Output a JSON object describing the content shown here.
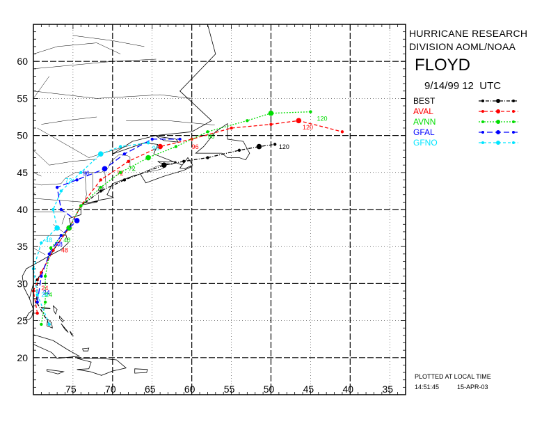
{
  "header": {
    "line1": "HURRICANE RESEARCH",
    "line2": "DIVISION AOML/NOAA",
    "storm_name": "FLOYD",
    "datetime": "9/14/99 12  UTC"
  },
  "legend": [
    {
      "label": "BEST",
      "color": "#000000",
      "dash": "5,2,1,2"
    },
    {
      "label": "AVAL",
      "color": "#ff0000",
      "dash": "5,3"
    },
    {
      "label": "AVNN",
      "color": "#00dd00",
      "dash": "2,2"
    },
    {
      "label": "GFAL",
      "color": "#0000ff",
      "dash": "8,4"
    },
    {
      "label": "GFNO",
      "color": "#00e5ff",
      "dash": "4,3"
    }
  ],
  "footer": {
    "plotted": "PLOTTED AT LOCAL TIME",
    "time": "14:51:45",
    "date": "15-APR-03"
  },
  "axes": {
    "lat_labels": [
      "20",
      "25",
      "30",
      "35",
      "40",
      "45",
      "50",
      "55",
      "60"
    ],
    "lon_labels": [
      "75",
      "70",
      "65",
      "60",
      "55",
      "50",
      "45",
      "40",
      "35"
    ],
    "lon_range": [
      -80,
      -33
    ],
    "lat_range": [
      15,
      65
    ]
  },
  "tracks": [
    {
      "name": "BEST",
      "points": [
        [
          -78,
          24.5
        ],
        [
          -79.6,
          27.5
        ],
        [
          -79.5,
          30.5
        ],
        [
          -77.5,
          34.5
        ],
        [
          -75.5,
          37.5
        ],
        [
          -74,
          40.5
        ],
        [
          -71.5,
          42.5
        ],
        [
          -68.5,
          44
        ],
        [
          -63.5,
          46
        ],
        [
          -61,
          46.5
        ],
        [
          -58,
          47
        ],
        [
          -54,
          48
        ],
        [
          -51.5,
          48.5
        ],
        [
          -49.5,
          48.8
        ]
      ],
      "labels": [
        {
          "text": "72",
          "at": [
            -72,
            42.5
          ]
        },
        {
          "text": "120",
          "at": [
            -49,
            48.2
          ]
        }
      ]
    },
    {
      "name": "AVAL",
      "points": [
        [
          -79.5,
          26
        ],
        [
          -80,
          29
        ],
        [
          -79,
          31.5
        ],
        [
          -77.5,
          34.5
        ],
        [
          -75.5,
          37.5
        ],
        [
          -74,
          40.5
        ],
        [
          -71.5,
          44
        ],
        [
          -68,
          46.5
        ],
        [
          -64,
          48.5
        ],
        [
          -60,
          49.5
        ],
        [
          -55,
          51
        ],
        [
          -50,
          51.5
        ],
        [
          -46.5,
          52
        ],
        [
          -41,
          50.5
        ]
      ],
      "labels": [
        {
          "text": "24",
          "at": [
            -79,
            29.1
          ]
        },
        {
          "text": "48",
          "at": [
            -76.5,
            34.2
          ]
        },
        {
          "text": "72",
          "at": [
            -69.5,
            44.6
          ]
        },
        {
          "text": "96",
          "at": [
            -60,
            48.2
          ]
        },
        {
          "text": "120",
          "at": [
            -46,
            50.8
          ]
        }
      ]
    },
    {
      "name": "AVNN",
      "points": [
        [
          -79,
          24.5
        ],
        [
          -78.5,
          27.5
        ],
        [
          -78.5,
          31
        ],
        [
          -77.8,
          34.8
        ],
        [
          -75.5,
          37.5
        ],
        [
          -74,
          40.5
        ],
        [
          -71.5,
          43
        ],
        [
          -69,
          45
        ],
        [
          -65.5,
          47
        ],
        [
          -62,
          48.5
        ],
        [
          -58,
          50.5
        ],
        [
          -53,
          52
        ],
        [
          -50,
          53
        ],
        [
          -45,
          53.2
        ]
      ],
      "labels": [
        {
          "text": "24",
          "at": [
            -78.5,
            28.2
          ]
        },
        {
          "text": "48",
          "at": [
            -76.2,
            35.6
          ]
        },
        {
          "text": "72",
          "at": [
            -68,
            45.2
          ]
        },
        {
          "text": "96",
          "at": [
            -58,
            49.6
          ]
        },
        {
          "text": "120",
          "at": [
            -44.2,
            52
          ]
        }
      ]
    },
    {
      "name": "GFAL",
      "points": [
        [
          -79.5,
          27.5
        ],
        [
          -79,
          31
        ],
        [
          -78,
          34
        ],
        [
          -76.5,
          36.5
        ],
        [
          -74.5,
          38.5
        ],
        [
          -76.5,
          40
        ],
        [
          -77,
          43
        ],
        [
          -74.5,
          44
        ],
        [
          -71,
          45.5
        ],
        [
          -68.5,
          47.5
        ],
        [
          -65,
          49.5
        ],
        [
          -61.5,
          49.5
        ]
      ],
      "labels": [
        {
          "text": "24",
          "at": [
            -78.8,
            28.5
          ]
        },
        {
          "text": "48",
          "at": [
            -77.2,
            35
          ]
        },
        {
          "text": "96",
          "at": [
            -73.8,
            44.6
          ]
        }
      ]
    },
    {
      "name": "GFNO",
      "points": [
        [
          -78,
          24.5
        ],
        [
          -79.5,
          28.5
        ],
        [
          -80,
          32
        ],
        [
          -79,
          35.5
        ],
        [
          -77,
          37.5
        ],
        [
          -77.5,
          40
        ],
        [
          -76.5,
          42.5
        ],
        [
          -74,
          45
        ],
        [
          -71.5,
          47.5
        ],
        [
          -69,
          48.5
        ],
        [
          -65.5,
          49
        ]
      ],
      "labels": [
        {
          "text": "24",
          "at": [
            -79,
            28.2
          ]
        },
        {
          "text": "48",
          "at": [
            -78.5,
            35.6
          ]
        },
        {
          "text": "72",
          "at": [
            -76,
            43.6
          ]
        },
        {
          "text": "96",
          "at": [
            -65,
            48
          ]
        }
      ]
    }
  ],
  "land": [
    {
      "name": "north-america",
      "points": [
        [
          -80,
          65
        ],
        [
          -58,
          65
        ],
        [
          -57,
          61
        ],
        [
          -61.5,
          56
        ],
        [
          -57.5,
          52
        ],
        [
          -60,
          50.5
        ],
        [
          -64.5,
          50
        ],
        [
          -67.5,
          49.2
        ],
        [
          -70,
          47.5
        ],
        [
          -66,
          49
        ],
        [
          -64.3,
          48.8
        ],
        [
          -64.8,
          47.5
        ],
        [
          -61.2,
          46
        ],
        [
          -60,
          45.8
        ],
        [
          -61,
          45.3
        ],
        [
          -63.5,
          44.5
        ],
        [
          -65.8,
          43.6
        ],
        [
          -66.5,
          44.8
        ],
        [
          -67.5,
          44.5
        ],
        [
          -70,
          43.5
        ],
        [
          -70.7,
          42
        ],
        [
          -69.9,
          41.6
        ],
        [
          -71.5,
          41.3
        ],
        [
          -73.8,
          40.7
        ],
        [
          -74,
          40.5
        ],
        [
          -74,
          39.3
        ],
        [
          -75.5,
          38.8
        ],
        [
          -75.3,
          38
        ],
        [
          -76,
          37
        ],
        [
          -75.6,
          35.5
        ],
        [
          -76.5,
          34.6
        ],
        [
          -77.9,
          33.8
        ],
        [
          -79.2,
          33
        ],
        [
          -80.9,
          32
        ],
        [
          -81.4,
          31
        ],
        [
          -81.2,
          29.5
        ],
        [
          -80.5,
          28
        ],
        [
          -80,
          26.5
        ],
        [
          -80.2,
          25.5
        ],
        [
          -80.6,
          25.1
        ],
        [
          -81,
          25.2
        ],
        [
          -80.6,
          26
        ],
        [
          -80,
          26.5
        ],
        [
          -80.5,
          28
        ],
        [
          -80,
          30
        ],
        [
          -80,
          65
        ]
      ]
    },
    {
      "name": "newfoundland",
      "points": [
        [
          -59.5,
          47.6
        ],
        [
          -58.5,
          48.5
        ],
        [
          -57,
          50.5
        ],
        [
          -55.5,
          51.6
        ],
        [
          -55.5,
          49.5
        ],
        [
          -53.5,
          49.2
        ],
        [
          -52.7,
          47.6
        ],
        [
          -53.2,
          46.7
        ],
        [
          -54,
          47
        ],
        [
          -55.5,
          47
        ],
        [
          -56.2,
          47.6
        ],
        [
          -59.5,
          47.6
        ]
      ]
    },
    {
      "name": "cape-breton",
      "points": [
        [
          -61.5,
          45.6
        ],
        [
          -60.5,
          47
        ],
        [
          -59.9,
          46
        ],
        [
          -60.9,
          45.5
        ],
        [
          -61.5,
          45.6
        ]
      ]
    },
    {
      "name": "pei",
      "points": [
        [
          -64.3,
          46.5
        ],
        [
          -63,
          46.4
        ],
        [
          -62,
          46.5
        ],
        [
          -62.5,
          46.1
        ],
        [
          -64,
          46.3
        ],
        [
          -64.3,
          46.5
        ]
      ]
    },
    {
      "name": "anticosti",
      "points": [
        [
          -64.5,
          49.9
        ],
        [
          -62,
          49.5
        ],
        [
          -61.7,
          49.1
        ],
        [
          -63.5,
          49.3
        ],
        [
          -64.5,
          49.9
        ]
      ]
    },
    {
      "name": "long-island",
      "points": [
        [
          -74,
          40.6
        ],
        [
          -72,
          41
        ],
        [
          -71.9,
          41.1
        ],
        [
          -73.5,
          40.9
        ],
        [
          -74,
          40.6
        ]
      ]
    },
    {
      "name": "grand-bahama",
      "points": [
        [
          -79,
          26.8
        ],
        [
          -78,
          26.7
        ],
        [
          -77.9,
          26.6
        ],
        [
          -78.9,
          26.6
        ],
        [
          -79,
          26.8
        ]
      ]
    },
    {
      "name": "abaco",
      "points": [
        [
          -77.5,
          27
        ],
        [
          -77,
          26.5
        ],
        [
          -77.2,
          25.9
        ],
        [
          -77.4,
          26.3
        ],
        [
          -77.5,
          27
        ]
      ]
    },
    {
      "name": "andros",
      "points": [
        [
          -78.2,
          25.2
        ],
        [
          -77.7,
          24.7
        ],
        [
          -77.6,
          24
        ],
        [
          -78.3,
          24.3
        ],
        [
          -78.2,
          25.2
        ]
      ]
    },
    {
      "name": "eleuthera",
      "points": [
        [
          -76.7,
          25.6
        ],
        [
          -76.2,
          25
        ],
        [
          -76.3,
          24.8
        ],
        [
          -76.7,
          25.3
        ],
        [
          -76.7,
          25.6
        ]
      ]
    },
    {
      "name": "exuma",
      "points": [
        [
          -76.5,
          24.6
        ],
        [
          -75.8,
          23.7
        ],
        [
          -75.6,
          23.4
        ],
        [
          -76,
          23.8
        ],
        [
          -76.5,
          24.6
        ]
      ]
    },
    {
      "name": "long-island-bs",
      "points": [
        [
          -75.4,
          23.6
        ],
        [
          -75,
          23
        ],
        [
          -75.2,
          23.1
        ],
        [
          -75.4,
          23.6
        ]
      ]
    },
    {
      "name": "inagua",
      "points": [
        [
          -73.8,
          21.2
        ],
        [
          -73,
          21.3
        ],
        [
          -73.1,
          20.9
        ],
        [
          -73.7,
          20.9
        ],
        [
          -73.8,
          21.2
        ]
      ]
    },
    {
      "name": "cuba",
      "points": [
        [
          -80,
          23.1
        ],
        [
          -77.5,
          22.3
        ],
        [
          -75.7,
          21.1
        ],
        [
          -74.2,
          20.2
        ],
        [
          -77,
          19.9
        ],
        [
          -77.7,
          20.7
        ],
        [
          -80,
          21.8
        ],
        [
          -80,
          23.1
        ]
      ]
    },
    {
      "name": "hispaniola",
      "points": [
        [
          -74.5,
          19.9
        ],
        [
          -72.8,
          19.9
        ],
        [
          -71.5,
          19.9
        ],
        [
          -69.5,
          19.7
        ],
        [
          -68.3,
          18.6
        ],
        [
          -70,
          18.2
        ],
        [
          -71.4,
          17.6
        ],
        [
          -72.8,
          18.1
        ],
        [
          -74.5,
          18.4
        ],
        [
          -73,
          18.5
        ],
        [
          -72.7,
          19.4
        ],
        [
          -74.5,
          19.9
        ]
      ]
    },
    {
      "name": "jamaica",
      "points": [
        [
          -78.3,
          18.4
        ],
        [
          -76.2,
          18.1
        ],
        [
          -76.9,
          17.8
        ],
        [
          -78.3,
          18.2
        ],
        [
          -78.3,
          18.4
        ]
      ]
    },
    {
      "name": "puerto-rico",
      "points": [
        [
          -67.2,
          18.5
        ],
        [
          -65.6,
          18.4
        ],
        [
          -65.7,
          18
        ],
        [
          -67.2,
          17.9
        ],
        [
          -67.2,
          18.5
        ]
      ]
    }
  ],
  "borders": [
    [
      [
        -80,
        43.5
      ],
      [
        -79,
        43.3
      ],
      [
        -76.5,
        43.5
      ],
      [
        -76,
        44.2
      ],
      [
        -74.7,
        45
      ],
      [
        -71.5,
        45
      ],
      [
        -70.7,
        45.4
      ],
      [
        -70.2,
        46.5
      ],
      [
        -69.2,
        47.4
      ],
      [
        -68.2,
        47.3
      ],
      [
        -67.8,
        47.1
      ],
      [
        -67.8,
        45.7
      ],
      [
        -67.1,
        45.2
      ]
    ],
    [
      [
        -66.5,
        44.8
      ],
      [
        -64.5,
        45.8
      ],
      [
        -64,
        46
      ],
      [
        -63.5,
        45.6
      ],
      [
        -64,
        45.4
      ],
      [
        -65.8,
        45
      ]
    ],
    [
      [
        -79.5,
        51
      ],
      [
        -73,
        47
      ],
      [
        -70,
        48
      ],
      [
        -68,
        48.6
      ]
    ],
    [
      [
        -68.3,
        52
      ],
      [
        -63,
        52
      ],
      [
        -57.1,
        51.4
      ]
    ],
    [
      [
        -80,
        56
      ],
      [
        -72,
        55
      ],
      [
        -64,
        55.5
      ],
      [
        -60,
        55
      ]
    ],
    [
      [
        -80,
        59
      ],
      [
        -70,
        60
      ],
      [
        -64.5,
        60.3
      ]
    ],
    [
      [
        -79,
        51.5
      ],
      [
        -76,
        52
      ],
      [
        -72,
        52.5
      ]
    ],
    [
      [
        -80,
        48
      ],
      [
        -78,
        46
      ],
      [
        -75,
        46.5
      ],
      [
        -72,
        46.8
      ]
    ],
    [
      [
        -80,
        36.5
      ],
      [
        -75.9,
        36.5
      ]
    ],
    [
      [
        -80,
        39.7
      ],
      [
        -75.8,
        39.7
      ]
    ],
    [
      [
        -80,
        34.8
      ],
      [
        -78.5,
        33.9
      ]
    ],
    [
      [
        -80,
        41.5
      ],
      [
        -73.7,
        41
      ]
    ],
    [
      [
        -80,
        45
      ],
      [
        -79,
        44.5
      ]
    ],
    [
      [
        -73.5,
        45
      ],
      [
        -73.3,
        42
      ],
      [
        -73.5,
        41
      ]
    ],
    [
      [
        -71.8,
        42
      ],
      [
        -71.8,
        41.3
      ]
    ],
    [
      [
        -72.5,
        45
      ],
      [
        -72.5,
        42.7
      ]
    ],
    [
      [
        -71,
        45.3
      ],
      [
        -70.8,
        43
      ]
    ],
    [
      [
        -77.5,
        38
      ],
      [
        -76.3,
        37
      ]
    ],
    [
      [
        -76,
        39.3
      ],
      [
        -76.4,
        38
      ]
    ],
    [
      [
        -80,
        42
      ],
      [
        -79.8,
        42.3
      ]
    ],
    [
      [
        -80,
        55
      ],
      [
        -78,
        58
      ]
    ],
    [
      [
        -80,
        61
      ],
      [
        -77,
        62
      ],
      [
        -72,
        62.5
      ],
      [
        -69,
        61
      ]
    ],
    [
      [
        -75,
        63.5
      ],
      [
        -70,
        62.8
      ],
      [
        -66,
        62
      ]
    ]
  ]
}
